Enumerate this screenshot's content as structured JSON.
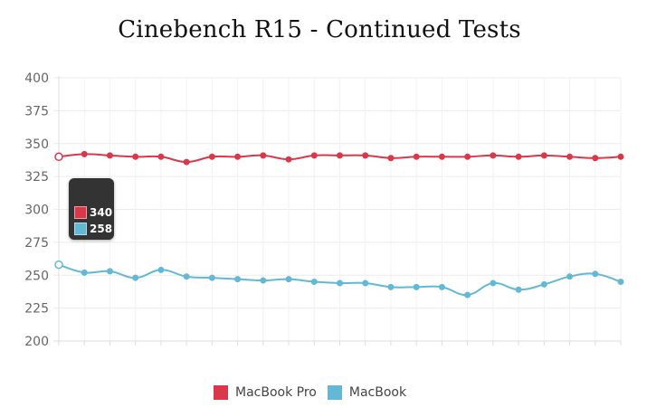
{
  "chart_data": {
    "type": "line",
    "title": "Cinebench R15 - Continued Tests",
    "xlabel": "",
    "ylabel": "",
    "ylim": [
      200,
      400
    ],
    "yticks": [
      "400",
      "375",
      "350",
      "325",
      "300",
      "275",
      "250",
      "225",
      "200"
    ],
    "grid": true,
    "legend_position": "bottom",
    "series": [
      {
        "name": "MacBook Pro",
        "color": "#d9384a",
        "values": [
          340,
          342,
          341,
          340,
          340,
          336,
          340,
          340,
          341,
          338,
          341,
          341,
          341,
          339,
          340,
          340,
          340,
          341,
          340,
          341,
          340,
          339,
          340
        ]
      },
      {
        "name": "MacBook",
        "color": "#63b8d6",
        "values": [
          258,
          252,
          253,
          248,
          254,
          249,
          248,
          247,
          246,
          247,
          245,
          244,
          244,
          241,
          241,
          241,
          235,
          244,
          239,
          243,
          249,
          251,
          245
        ]
      }
    ],
    "tooltip": {
      "visible": true,
      "index": 0,
      "values": [
        "340",
        "258"
      ]
    }
  }
}
